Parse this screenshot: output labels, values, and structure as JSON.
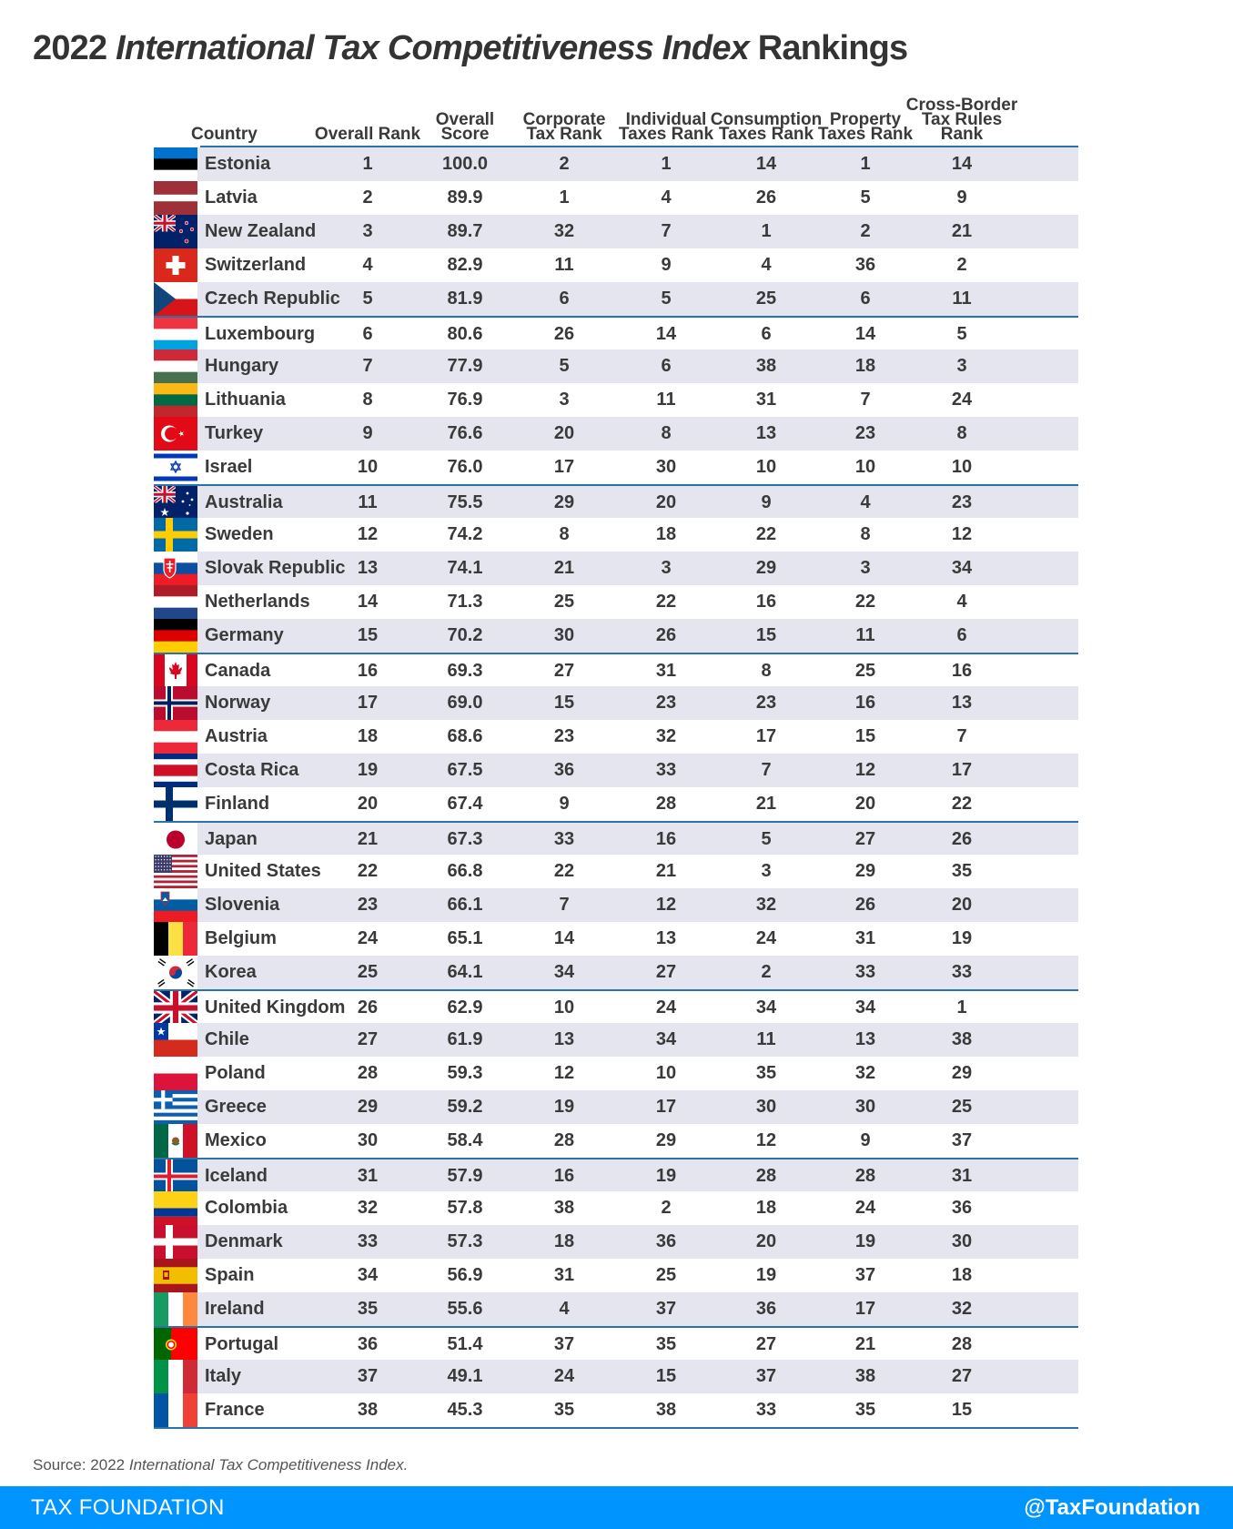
{
  "title": {
    "prefix": "2022 ",
    "italic": "International Tax Competitiveness Index",
    "suffix": " Rankings"
  },
  "source": {
    "prefix": "Source: 2022 ",
    "italic": "International Tax Competitiveness Index."
  },
  "footer": {
    "brand": "TAX FOUNDATION",
    "handle": "@TaxFoundation"
  },
  "colors": {
    "accent": "#2a73a8",
    "shade": "#e4e5ee",
    "footer": "#0094ff"
  },
  "chart_data": {
    "type": "table",
    "columns": [
      "Country",
      "Overall Rank",
      "Overall\nScore",
      "Corporate\nTax Rank",
      "Individual\nTaxes Rank",
      "Consumption\nTaxes Rank",
      "Property\nTaxes Rank",
      "Cross-Border\nTax Rules\nRank"
    ],
    "rows": [
      {
        "flag": "estonia-flag",
        "country": "Estonia",
        "values": [
          "1",
          "100.0",
          "2",
          "1",
          "14",
          "1",
          "14"
        ]
      },
      {
        "flag": "latvia-flag",
        "country": "Latvia",
        "values": [
          "2",
          "89.9",
          "1",
          "4",
          "26",
          "5",
          "9"
        ]
      },
      {
        "flag": "new-zealand-flag",
        "country": "New Zealand",
        "values": [
          "3",
          "89.7",
          "32",
          "7",
          "1",
          "2",
          "21"
        ]
      },
      {
        "flag": "switzerland-flag",
        "country": "Switzerland",
        "values": [
          "4",
          "82.9",
          "11",
          "9",
          "4",
          "36",
          "2"
        ]
      },
      {
        "flag": "czech-republic-flag",
        "country": "Czech Republic",
        "values": [
          "5",
          "81.9",
          "6",
          "5",
          "25",
          "6",
          "11"
        ]
      },
      {
        "flag": "luxembourg-flag",
        "country": "Luxembourg",
        "values": [
          "6",
          "80.6",
          "26",
          "14",
          "6",
          "14",
          "5"
        ]
      },
      {
        "flag": "hungary-flag",
        "country": "Hungary",
        "values": [
          "7",
          "77.9",
          "5",
          "6",
          "38",
          "18",
          "3"
        ]
      },
      {
        "flag": "lithuania-flag",
        "country": "Lithuania",
        "values": [
          "8",
          "76.9",
          "3",
          "11",
          "31",
          "7",
          "24"
        ]
      },
      {
        "flag": "turkey-flag",
        "country": "Turkey",
        "values": [
          "9",
          "76.6",
          "20",
          "8",
          "13",
          "23",
          "8"
        ]
      },
      {
        "flag": "israel-flag",
        "country": "Israel",
        "values": [
          "10",
          "76.0",
          "17",
          "30",
          "10",
          "10",
          "10"
        ]
      },
      {
        "flag": "australia-flag",
        "country": "Australia",
        "values": [
          "11",
          "75.5",
          "29",
          "20",
          "9",
          "4",
          "23"
        ]
      },
      {
        "flag": "sweden-flag",
        "country": "Sweden",
        "values": [
          "12",
          "74.2",
          "8",
          "18",
          "22",
          "8",
          "12"
        ]
      },
      {
        "flag": "slovak-republic-flag",
        "country": "Slovak Republic",
        "values": [
          "13",
          "74.1",
          "21",
          "3",
          "29",
          "3",
          "34"
        ]
      },
      {
        "flag": "netherlands-flag",
        "country": "Netherlands",
        "values": [
          "14",
          "71.3",
          "25",
          "22",
          "16",
          "22",
          "4"
        ]
      },
      {
        "flag": "germany-flag",
        "country": "Germany",
        "values": [
          "15",
          "70.2",
          "30",
          "26",
          "15",
          "11",
          "6"
        ]
      },
      {
        "flag": "canada-flag",
        "country": "Canada",
        "values": [
          "16",
          "69.3",
          "27",
          "31",
          "8",
          "25",
          "16"
        ]
      },
      {
        "flag": "norway-flag",
        "country": "Norway",
        "values": [
          "17",
          "69.0",
          "15",
          "23",
          "23",
          "16",
          "13"
        ]
      },
      {
        "flag": "austria-flag",
        "country": "Austria",
        "values": [
          "18",
          "68.6",
          "23",
          "32",
          "17",
          "15",
          "7"
        ]
      },
      {
        "flag": "costa-rica-flag",
        "country": "Costa Rica",
        "values": [
          "19",
          "67.5",
          "36",
          "33",
          "7",
          "12",
          "17"
        ]
      },
      {
        "flag": "finland-flag",
        "country": "Finland",
        "values": [
          "20",
          "67.4",
          "9",
          "28",
          "21",
          "20",
          "22"
        ]
      },
      {
        "flag": "japan-flag",
        "country": "Japan",
        "values": [
          "21",
          "67.3",
          "33",
          "16",
          "5",
          "27",
          "26"
        ]
      },
      {
        "flag": "united-states-flag",
        "country": "United States",
        "values": [
          "22",
          "66.8",
          "22",
          "21",
          "3",
          "29",
          "35"
        ]
      },
      {
        "flag": "slovenia-flag",
        "country": "Slovenia",
        "values": [
          "23",
          "66.1",
          "7",
          "12",
          "32",
          "26",
          "20"
        ]
      },
      {
        "flag": "belgium-flag",
        "country": "Belgium",
        "values": [
          "24",
          "65.1",
          "14",
          "13",
          "24",
          "31",
          "19"
        ]
      },
      {
        "flag": "korea-flag",
        "country": "Korea",
        "values": [
          "25",
          "64.1",
          "34",
          "27",
          "2",
          "33",
          "33"
        ]
      },
      {
        "flag": "united-kingdom-flag",
        "country": "United Kingdom",
        "values": [
          "26",
          "62.9",
          "10",
          "24",
          "34",
          "34",
          "1"
        ]
      },
      {
        "flag": "chile-flag",
        "country": "Chile",
        "values": [
          "27",
          "61.9",
          "13",
          "34",
          "11",
          "13",
          "38"
        ]
      },
      {
        "flag": "poland-flag",
        "country": "Poland",
        "values": [
          "28",
          "59.3",
          "12",
          "10",
          "35",
          "32",
          "29"
        ]
      },
      {
        "flag": "greece-flag",
        "country": "Greece",
        "values": [
          "29",
          "59.2",
          "19",
          "17",
          "30",
          "30",
          "25"
        ]
      },
      {
        "flag": "mexico-flag",
        "country": "Mexico",
        "values": [
          "30",
          "58.4",
          "28",
          "29",
          "12",
          "9",
          "37"
        ]
      },
      {
        "flag": "iceland-flag",
        "country": "Iceland",
        "values": [
          "31",
          "57.9",
          "16",
          "19",
          "28",
          "28",
          "31"
        ]
      },
      {
        "flag": "colombia-flag",
        "country": "Colombia",
        "values": [
          "32",
          "57.8",
          "38",
          "2",
          "18",
          "24",
          "36"
        ]
      },
      {
        "flag": "denmark-flag",
        "country": "Denmark",
        "values": [
          "33",
          "57.3",
          "18",
          "36",
          "20",
          "19",
          "30"
        ]
      },
      {
        "flag": "spain-flag",
        "country": "Spain",
        "values": [
          "34",
          "56.9",
          "31",
          "25",
          "19",
          "37",
          "18"
        ]
      },
      {
        "flag": "ireland-flag",
        "country": "Ireland",
        "values": [
          "35",
          "55.6",
          "4",
          "37",
          "36",
          "17",
          "32"
        ]
      },
      {
        "flag": "portugal-flag",
        "country": "Portugal",
        "values": [
          "36",
          "51.4",
          "37",
          "35",
          "27",
          "21",
          "28"
        ]
      },
      {
        "flag": "italy-flag",
        "country": "Italy",
        "values": [
          "37",
          "49.1",
          "24",
          "15",
          "37",
          "38",
          "27"
        ]
      },
      {
        "flag": "france-flag",
        "country": "France",
        "values": [
          "38",
          "45.3",
          "35",
          "38",
          "33",
          "35",
          "15"
        ]
      }
    ]
  }
}
